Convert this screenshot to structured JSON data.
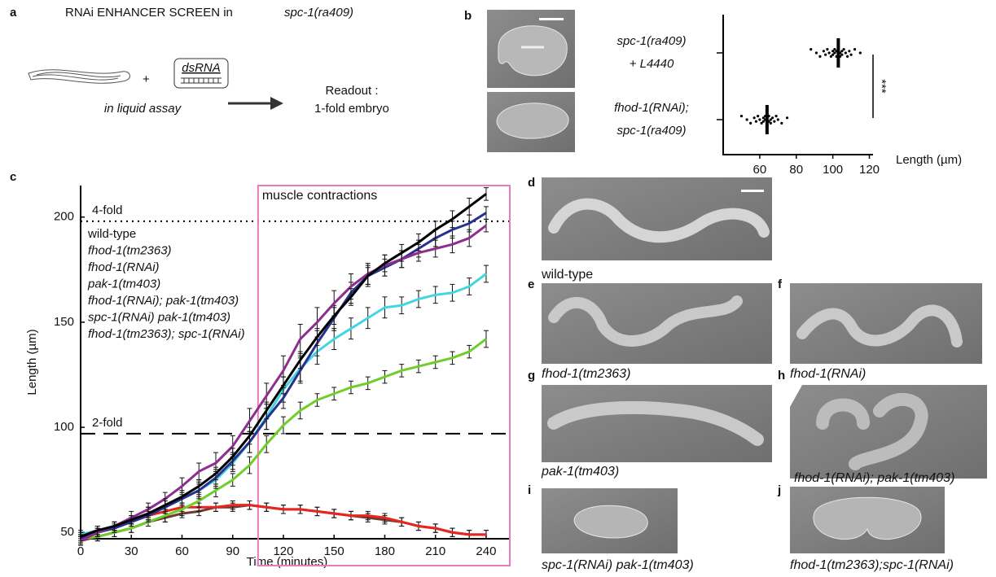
{
  "panel_a": {
    "letter": "a",
    "title": "RNAi ENHANCER SCREEN in",
    "title_strain": "spc-1(ra409)",
    "plus": "+",
    "dsrna": "dsRNA",
    "condition": "in liquid assay",
    "readout": [
      "Readout :",
      "1-fold embryo"
    ]
  },
  "chart_data": [
    {
      "type": "strip",
      "letter": "b",
      "categories": [
        [
          "spc-1(ra409)",
          "+ L4440"
        ],
        [
          "fhod-1(RNAi);",
          "spc-1(ra409)"
        ]
      ],
      "series": [
        {
          "values": [
            88,
            91,
            93,
            95,
            96,
            97,
            98,
            99,
            100,
            100,
            101,
            101,
            102,
            102,
            103,
            103,
            104,
            104,
            105,
            105,
            106,
            107,
            108,
            109,
            110,
            112,
            115
          ]
        },
        {
          "values": [
            50,
            53,
            55,
            57,
            58,
            59,
            60,
            61,
            62,
            62,
            63,
            63,
            64,
            64,
            65,
            65,
            66,
            66,
            67,
            68,
            69,
            70,
            72,
            75
          ]
        }
      ],
      "means": [
        103,
        64
      ],
      "significance": "***",
      "x_label": "Length (µm)",
      "xlim": [
        40,
        122
      ],
      "xticks": [
        60,
        80,
        100,
        120
      ],
      "color": "#000000"
    },
    {
      "type": "line",
      "letter": "c",
      "x_label": "Time (minutes)",
      "y_label": "Length (µm)",
      "x": [
        0,
        10,
        20,
        30,
        40,
        50,
        60,
        70,
        80,
        90,
        100,
        110,
        120,
        130,
        140,
        150,
        160,
        170,
        180,
        190,
        200,
        210,
        220,
        230,
        240
      ],
      "xlim": [
        0,
        254
      ],
      "xticks": [
        0,
        30,
        60,
        90,
        120,
        150,
        180,
        210,
        240
      ],
      "ylim": [
        47,
        215
      ],
      "yticks": [
        50,
        100,
        150,
        200
      ],
      "reference_lines": [
        {
          "label": "4-fold",
          "value": 198,
          "style": "dotted"
        },
        {
          "label": "2-fold",
          "value": 97,
          "style": "dashed"
        }
      ],
      "shaded_region": {
        "label": "muscle contractions",
        "x": [
          105,
          254
        ],
        "color": "#e87ac0",
        "label_color": "#e8251f"
      },
      "series": [
        {
          "name": "wild-type",
          "color": "#000000",
          "values": [
            48,
            51,
            53,
            56,
            59,
            63,
            67,
            72,
            78,
            86,
            96,
            108,
            120,
            132,
            143,
            153,
            162,
            172,
            178,
            183,
            188,
            194,
            199,
            205,
            211
          ],
          "errors": [
            2,
            2,
            2,
            2,
            3,
            3,
            3,
            3,
            3,
            4,
            4,
            4,
            4,
            4,
            4,
            4,
            4,
            4,
            4,
            4,
            4,
            4,
            4,
            4,
            3
          ]
        },
        {
          "name": "fhod-1(tm2363)",
          "color": "#8e2d8f",
          "values": [
            46,
            50,
            53,
            57,
            61,
            66,
            72,
            79,
            83,
            91,
            103,
            115,
            127,
            142,
            150,
            159,
            167,
            173,
            177,
            180,
            183,
            185,
            187,
            190,
            196
          ],
          "errors": [
            2,
            2,
            2,
            3,
            3,
            3,
            4,
            4,
            5,
            5,
            6,
            6,
            7,
            7,
            7,
            6,
            6,
            5,
            5,
            4,
            4,
            4,
            4,
            4,
            3
          ]
        },
        {
          "name": "fhod-1(RNAi)",
          "color": "#27318f",
          "values": [
            47,
            50,
            52,
            55,
            58,
            62,
            66,
            70,
            76,
            84,
            93,
            104,
            114,
            127,
            140,
            152,
            164,
            172,
            176,
            180,
            185,
            190,
            194,
            197,
            202
          ],
          "errors": [
            2,
            2,
            2,
            2,
            3,
            3,
            3,
            4,
            4,
            4,
            5,
            5,
            5,
            6,
            6,
            6,
            5,
            5,
            4,
            4,
            4,
            4,
            4,
            4,
            3
          ]
        },
        {
          "name": "pak-1(tm403)",
          "color": "#43d6e0",
          "values": [
            49,
            51,
            53,
            56,
            59,
            62,
            66,
            70,
            75,
            83,
            93,
            105,
            118,
            128,
            136,
            142,
            147,
            152,
            157,
            158,
            161,
            163,
            164,
            167,
            173
          ],
          "errors": [
            2,
            2,
            2,
            2,
            3,
            3,
            3,
            3,
            4,
            4,
            5,
            6,
            6,
            6,
            6,
            5,
            5,
            5,
            5,
            4,
            4,
            4,
            4,
            4,
            4
          ]
        },
        {
          "name": "fhod-1(RNAi); pak-1(tm403)",
          "color": "#6fce2a",
          "values": [
            47,
            48,
            50,
            52,
            55,
            58,
            61,
            65,
            70,
            75,
            82,
            92,
            101,
            108,
            113,
            116,
            119,
            121,
            124,
            127,
            129,
            131,
            133,
            136,
            142
          ],
          "errors": [
            2,
            2,
            2,
            2,
            2,
            3,
            3,
            3,
            3,
            3,
            4,
            4,
            4,
            4,
            3,
            3,
            3,
            3,
            3,
            3,
            3,
            3,
            3,
            3,
            4
          ]
        },
        {
          "name": "spc-1(RNAi) pak-1(tm403)",
          "color": "#e8251f",
          "values": [
            46,
            50,
            53,
            55,
            58,
            60,
            62,
            62,
            62,
            63,
            63,
            62,
            61,
            61,
            60,
            59,
            58,
            58,
            57,
            55,
            53,
            52,
            50,
            49,
            49
          ],
          "errors": [
            2,
            2,
            2,
            2,
            2,
            2,
            2,
            2,
            2,
            2,
            2,
            2,
            2,
            2,
            2,
            2,
            2,
            2,
            2,
            2,
            2,
            2,
            2,
            2,
            2
          ]
        },
        {
          "name": "fhod-1(tm2363); spc-1(RNAi)",
          "color": "#6d3b2f",
          "values": [
            46,
            48,
            50,
            52,
            55,
            57,
            59,
            60,
            62,
            62,
            63,
            62,
            61,
            61,
            60,
            59,
            58,
            57,
            56,
            55,
            53,
            52,
            50,
            49,
            49
          ],
          "errors": [
            2,
            2,
            2,
            2,
            2,
            2,
            2,
            2,
            2,
            2,
            2,
            2,
            2,
            2,
            2,
            2,
            2,
            2,
            2,
            2,
            2,
            2,
            2,
            2,
            2
          ]
        }
      ]
    }
  ],
  "micrographs": [
    {
      "letter": "d",
      "caption": "wild-type",
      "color": "#000000",
      "italic": false
    },
    {
      "letter": "e",
      "caption": "fhod-1(tm2363)",
      "color": "#8e2d8f",
      "italic": true
    },
    {
      "letter": "f",
      "caption": "fhod-1(RNAi)",
      "color": "#27318f",
      "italic": true
    },
    {
      "letter": "g",
      "caption": "pak-1(tm403)",
      "color": "#43d6e0",
      "italic": true
    },
    {
      "letter": "h",
      "caption": "fhod-1(RNAi); pak-1(tm403)",
      "color": "#6fce2a",
      "italic": true
    },
    {
      "letter": "i",
      "caption": "spc-1(RNAi) pak-1(tm403)",
      "color": "#e8251f",
      "italic": true
    },
    {
      "letter": "j",
      "caption": "fhod-1(tm2363);spc-1(RNAi)",
      "color": "#6d3b2f",
      "italic": true
    }
  ]
}
